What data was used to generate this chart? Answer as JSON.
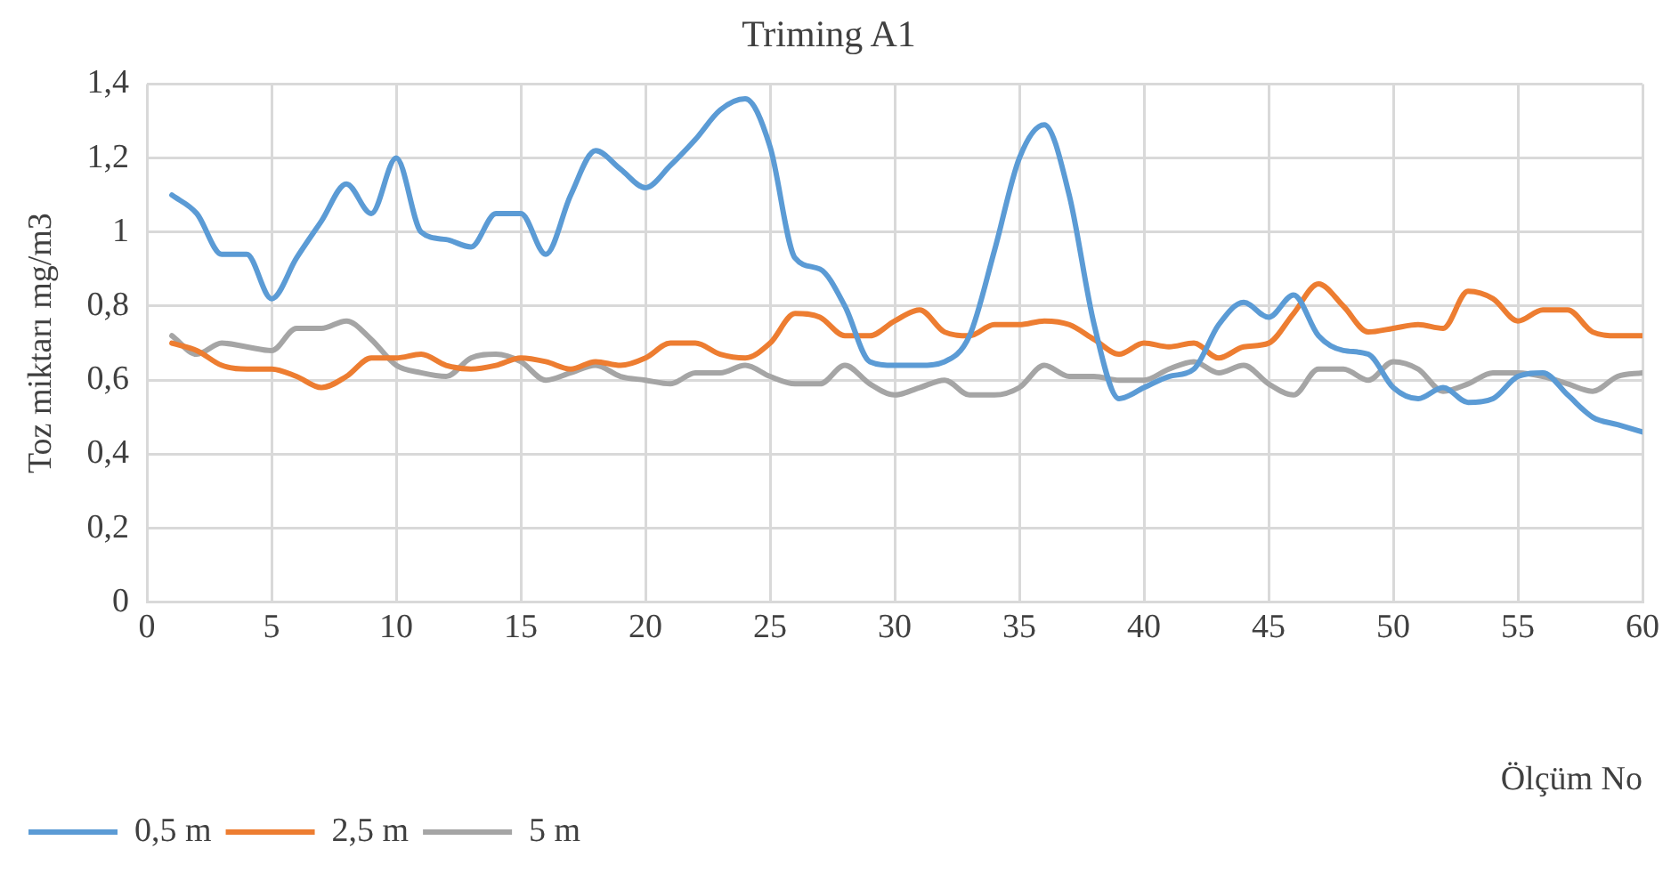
{
  "chart_data": {
    "type": "line",
    "title": "Triming A1",
    "xlabel": "Ölçüm No",
    "ylabel": "Toz miktarı mg/m3",
    "x": [
      1,
      2,
      3,
      4,
      5,
      6,
      7,
      8,
      9,
      10,
      11,
      12,
      13,
      14,
      15,
      16,
      17,
      18,
      19,
      20,
      21,
      22,
      23,
      24,
      25,
      26,
      27,
      28,
      29,
      30,
      31,
      32,
      33,
      34,
      35,
      36,
      37,
      38,
      39,
      40,
      41,
      42,
      43,
      44,
      45,
      46,
      47,
      48,
      49,
      50,
      51,
      52,
      53,
      54,
      55,
      56,
      57,
      58,
      59,
      60
    ],
    "series": [
      {
        "name": "0,5 m",
        "color": "#5b9bd5",
        "values": [
          1.1,
          1.05,
          0.94,
          0.94,
          0.82,
          0.93,
          1.03,
          1.13,
          1.05,
          1.2,
          1.0,
          0.98,
          0.96,
          1.05,
          1.05,
          0.94,
          1.1,
          1.22,
          1.17,
          1.12,
          1.18,
          1.25,
          1.33,
          1.36,
          1.23,
          0.93,
          0.9,
          0.8,
          0.65,
          0.64,
          0.64,
          0.65,
          0.72,
          0.95,
          1.2,
          1.29,
          1.1,
          0.75,
          0.55,
          0.58,
          0.61,
          0.63,
          0.75,
          0.81,
          0.77,
          0.83,
          0.72,
          0.68,
          0.67,
          0.58,
          0.55,
          0.58,
          0.54,
          0.55,
          0.61,
          0.62,
          0.56,
          0.5,
          0.48,
          0.46
        ]
      },
      {
        "name": "2,5 m",
        "color": "#ed7d31",
        "values": [
          0.7,
          0.68,
          0.64,
          0.63,
          0.63,
          0.61,
          0.58,
          0.61,
          0.66,
          0.66,
          0.67,
          0.64,
          0.63,
          0.64,
          0.66,
          0.65,
          0.63,
          0.65,
          0.64,
          0.66,
          0.7,
          0.7,
          0.67,
          0.66,
          0.7,
          0.78,
          0.77,
          0.72,
          0.72,
          0.76,
          0.79,
          0.73,
          0.72,
          0.75,
          0.75,
          0.76,
          0.75,
          0.71,
          0.67,
          0.7,
          0.69,
          0.7,
          0.66,
          0.69,
          0.7,
          0.78,
          0.86,
          0.8,
          0.73,
          0.74,
          0.75,
          0.74,
          0.84,
          0.82,
          0.76,
          0.79,
          0.79,
          0.73,
          0.72,
          0.72
        ]
      },
      {
        "name": "5 m",
        "color": "#a5a5a5",
        "values": [
          0.72,
          0.67,
          0.7,
          0.69,
          0.68,
          0.74,
          0.74,
          0.76,
          0.71,
          0.64,
          0.62,
          0.61,
          0.66,
          0.67,
          0.65,
          0.6,
          0.62,
          0.64,
          0.61,
          0.6,
          0.59,
          0.62,
          0.62,
          0.64,
          0.61,
          0.59,
          0.59,
          0.64,
          0.59,
          0.56,
          0.58,
          0.6,
          0.56,
          0.56,
          0.58,
          0.64,
          0.61,
          0.61,
          0.6,
          0.6,
          0.63,
          0.65,
          0.62,
          0.64,
          0.59,
          0.56,
          0.63,
          0.63,
          0.6,
          0.65,
          0.63,
          0.57,
          0.59,
          0.62,
          0.62,
          0.61,
          0.59,
          0.57,
          0.61,
          0.62
        ]
      }
    ],
    "xlim": [
      0,
      60
    ],
    "xticks": [
      0,
      5,
      10,
      15,
      20,
      25,
      30,
      35,
      40,
      45,
      50,
      55,
      60
    ],
    "ylim": [
      0,
      1.4
    ],
    "yticks": [
      0,
      {
        "value": 0.2,
        "label": "0,2"
      },
      {
        "value": 0.4,
        "label": "0,4"
      },
      {
        "value": 0.6,
        "label": "0,6"
      },
      {
        "value": 0.8,
        "label": "0,8"
      },
      1,
      {
        "value": 1.2,
        "label": "1,2"
      },
      {
        "value": 1.4,
        "label": "1,4"
      }
    ],
    "grid": true,
    "legend": "bottom left",
    "marker": "none",
    "line_style": "solid"
  }
}
